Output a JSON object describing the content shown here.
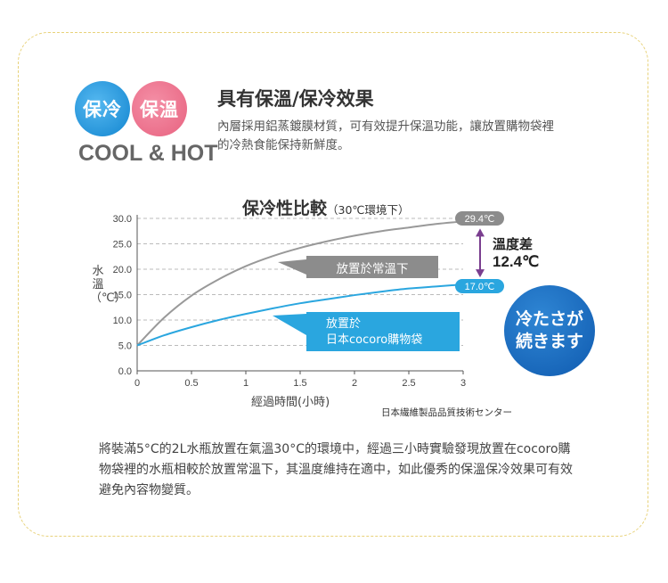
{
  "badges": {
    "cool": "保冷",
    "hot": "保溫",
    "caption": "COOL & HOT"
  },
  "header": {
    "title": "具有保溫/保冷效果",
    "description": "內層採用鋁蒸鍍膜材質，可有效提升保溫功能，讓放置購物袋裡的冷熱食能保持新鮮度。"
  },
  "chart_title": {
    "main": "保冷性比較",
    "sub": "（30℃環境下）"
  },
  "chart_data": {
    "type": "line",
    "xlabel": "經過時間(小時)",
    "ylabel": "水溫（℃）",
    "x_ticks": [
      "0",
      "0.5",
      "1",
      "1.5",
      "2",
      "2.5",
      "3"
    ],
    "y_ticks": [
      "0.0",
      "5.0",
      "10.0",
      "15.0",
      "20.0",
      "25.0",
      "30.0"
    ],
    "xlim": [
      0,
      3
    ],
    "ylim": [
      0,
      30
    ],
    "series": [
      {
        "name": "放置於常溫下",
        "color": "#999999",
        "x": [
          0,
          0.25,
          0.5,
          0.75,
          1,
          1.25,
          1.5,
          1.75,
          2,
          2.25,
          2.5,
          2.75,
          3
        ],
        "values": [
          5.0,
          10.5,
          14.8,
          18.0,
          20.6,
          22.6,
          24.2,
          25.5,
          26.6,
          27.5,
          28.2,
          28.9,
          29.4
        ],
        "end_label": "29.4℃"
      },
      {
        "name": "放置於日本cocoro購物袋",
        "color": "#2aa6df",
        "x": [
          0,
          0.25,
          0.5,
          0.75,
          1,
          1.25,
          1.5,
          1.75,
          2,
          2.25,
          2.5,
          2.75,
          3
        ],
        "values": [
          5.0,
          7.0,
          8.6,
          10.0,
          11.2,
          12.3,
          13.3,
          14.1,
          14.9,
          15.6,
          16.2,
          16.6,
          17.0
        ],
        "end_label": "17.0℃"
      }
    ],
    "annotations": {
      "diff_title": "溫度差",
      "diff_value": "12.4℃",
      "callout_gray": "放置於常溫下",
      "callout_blue_line1": "放置於",
      "callout_blue_line2": "日本cocoro購物袋"
    },
    "source": "日本繊維製品品質技術センター"
  },
  "jp_badge": {
    "line1": "冷たさが",
    "line2": "続きます"
  },
  "bottom_text": "將裝滿5°C的2L水瓶放置在氣溫30°C的環境中，經過三小時實驗發現放置在cocoro購物袋裡的水瓶相較於放置常溫下，其溫度維持在適中，如此優秀的保溫保冷效果可有效避免內容物變質。",
  "colors": {
    "blue": "#2aa6df",
    "gray": "#999999",
    "pink": "#ea6b87",
    "purple": "#7a3e8f",
    "border": "#e8d27a",
    "jp_blue": "#1461b5"
  }
}
